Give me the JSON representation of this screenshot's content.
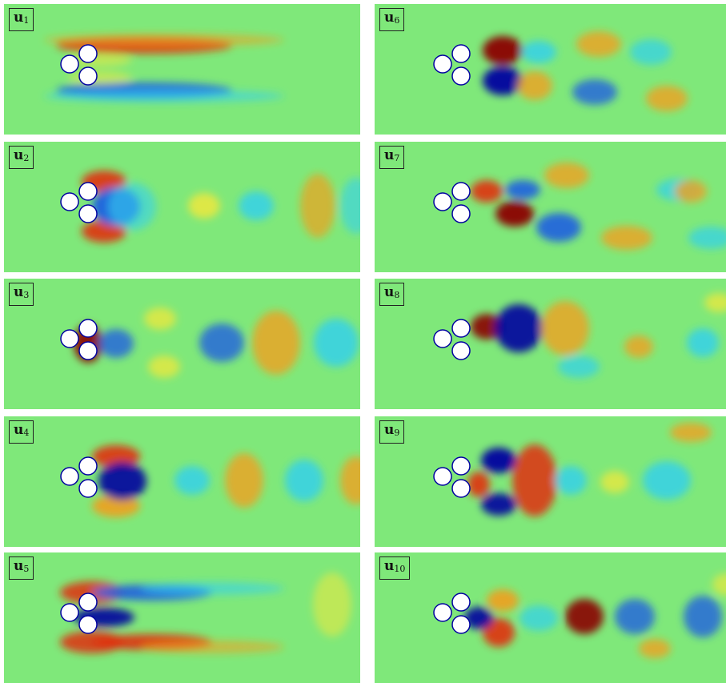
{
  "panels": [
    {
      "id": "u1",
      "symbol": "u",
      "index": "1",
      "col": 0,
      "row": 0
    },
    {
      "id": "u2",
      "symbol": "u",
      "index": "2",
      "col": 0,
      "row": 1
    },
    {
      "id": "u3",
      "symbol": "u",
      "index": "3",
      "col": 0,
      "row": 2
    },
    {
      "id": "u4",
      "symbol": "u",
      "index": "4",
      "col": 0,
      "row": 3
    },
    {
      "id": "u5",
      "symbol": "u",
      "index": "5",
      "col": 0,
      "row": 4
    },
    {
      "id": "u6",
      "symbol": "u",
      "index": "6",
      "col": 1,
      "row": 0
    },
    {
      "id": "u7",
      "symbol": "u",
      "index": "7",
      "col": 1,
      "row": 1
    },
    {
      "id": "u8",
      "symbol": "u",
      "index": "8",
      "col": 1,
      "row": 2
    },
    {
      "id": "u9",
      "symbol": "u",
      "index": "9",
      "col": 1,
      "row": 3
    },
    {
      "id": "u10",
      "symbol": "u",
      "index": "10",
      "col": 1,
      "row": 4
    }
  ],
  "colors": {
    "background": "#7fe87a",
    "dark_red": "#8b0000",
    "red": "#e03010",
    "orange": "#f0a020",
    "yellow": "#e8e840",
    "cyan": "#30d0f0",
    "blue": "#2060e0",
    "dark_blue": "#0000a0",
    "cylinder": "#ffffff"
  }
}
